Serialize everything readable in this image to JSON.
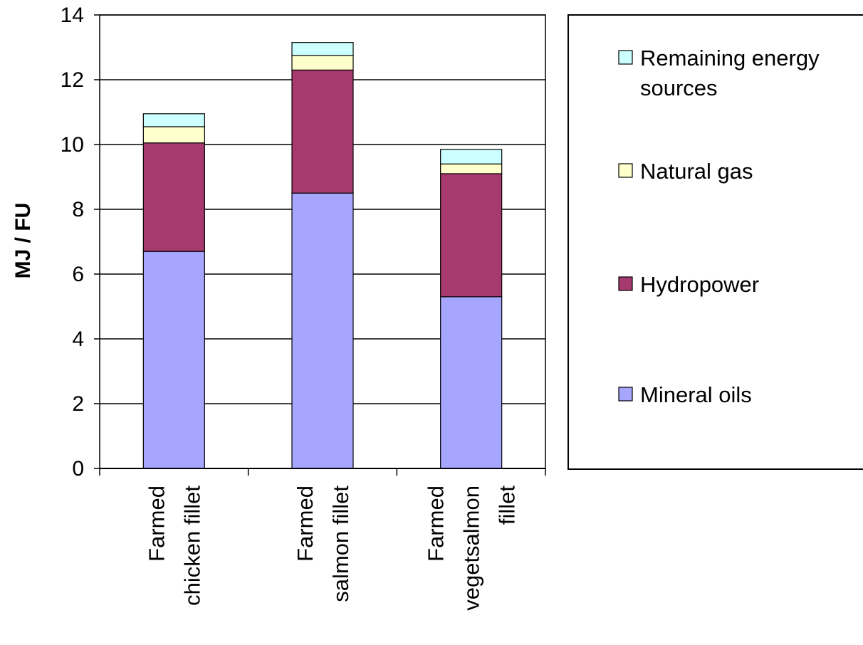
{
  "chart_data": {
    "type": "bar",
    "stacked": true,
    "categories": [
      [
        "Farmed",
        "chicken fillet"
      ],
      [
        "Farmed",
        "salmon fillet"
      ],
      [
        "Farmed",
        "vegetsalmon",
        "fillet"
      ]
    ],
    "series": [
      {
        "name": "Mineral oils",
        "color": "#a6a6ff",
        "values": [
          6.7,
          8.5,
          5.3
        ]
      },
      {
        "name": "Hydropower",
        "color": "#a63a6e",
        "values": [
          3.35,
          3.8,
          3.8
        ]
      },
      {
        "name": "Natural gas",
        "color": "#ffffcc",
        "values": [
          0.5,
          0.45,
          0.3
        ]
      },
      {
        "name": "Remaining energy sources",
        "color": "#ccffff",
        "values": [
          0.4,
          0.4,
          0.45
        ]
      }
    ],
    "legend_order": [
      3,
      2,
      1,
      0
    ],
    "legend_lines": {
      "0": [
        "Mineral oils"
      ],
      "1": [
        "Hydropower"
      ],
      "2": [
        "Natural gas"
      ],
      "3": [
        "Remaining energy",
        "sources"
      ]
    },
    "ylabel": "MJ / FU",
    "xlabel": "",
    "ylim": [
      0,
      14
    ],
    "yticks": [
      0,
      2,
      4,
      6,
      8,
      10,
      12,
      14
    ],
    "grid": true,
    "legend_position": "right"
  }
}
